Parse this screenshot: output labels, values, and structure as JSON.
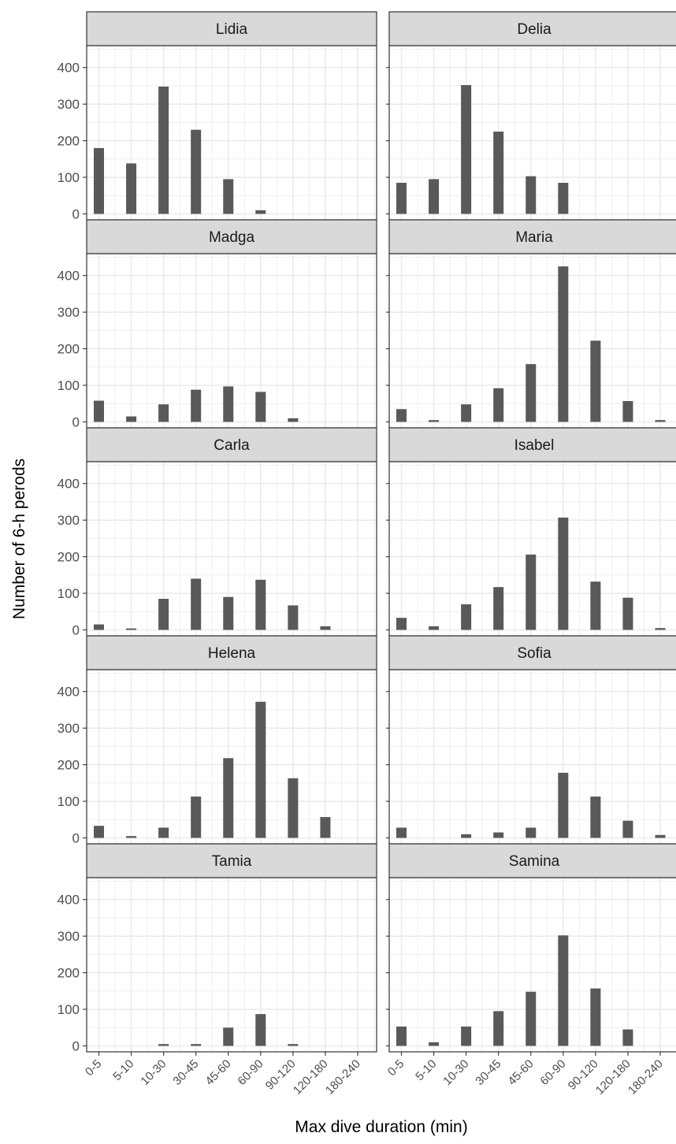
{
  "chart_data": {
    "type": "bar",
    "xlabel": "Max dive duration (min)",
    "ylabel": "Number of 6-h perods",
    "ylim": [
      0,
      450
    ],
    "yticks": [
      0,
      100,
      200,
      300,
      400
    ],
    "categories": [
      "0-5",
      "5-10",
      "10-30",
      "30-45",
      "45-60",
      "60-90",
      "90-120",
      "120-180",
      "180-240"
    ],
    "grid": true,
    "facet_layout": {
      "rows": 5,
      "cols": 2
    },
    "colors": {
      "bar": "#595959",
      "strip": "#d9d9d9",
      "grid": "#ebebeb",
      "border": "#333333"
    },
    "panels": [
      {
        "name": "Lidia",
        "values": [
          180,
          138,
          348,
          230,
          95,
          10,
          0,
          0,
          0
        ]
      },
      {
        "name": "Delia",
        "values": [
          85,
          95,
          352,
          225,
          103,
          85,
          0,
          0,
          0
        ]
      },
      {
        "name": "Madga",
        "values": [
          58,
          15,
          48,
          88,
          97,
          82,
          10,
          0,
          0
        ]
      },
      {
        "name": "Maria",
        "values": [
          35,
          5,
          48,
          92,
          158,
          425,
          222,
          57,
          5
        ]
      },
      {
        "name": "Carla",
        "values": [
          15,
          4,
          85,
          140,
          90,
          137,
          67,
          10,
          0
        ]
      },
      {
        "name": "Isabel",
        "values": [
          33,
          10,
          70,
          117,
          206,
          307,
          132,
          88,
          5
        ]
      },
      {
        "name": "Helena",
        "values": [
          33,
          5,
          28,
          113,
          218,
          372,
          163,
          57,
          0
        ]
      },
      {
        "name": "Sofia",
        "values": [
          28,
          0,
          10,
          15,
          28,
          178,
          113,
          47,
          8
        ]
      },
      {
        "name": "Tamia",
        "values": [
          0,
          0,
          5,
          5,
          50,
          87,
          5,
          0,
          0
        ]
      },
      {
        "name": "Samina",
        "values": [
          53,
          10,
          53,
          95,
          148,
          302,
          157,
          45,
          0
        ]
      }
    ]
  }
}
